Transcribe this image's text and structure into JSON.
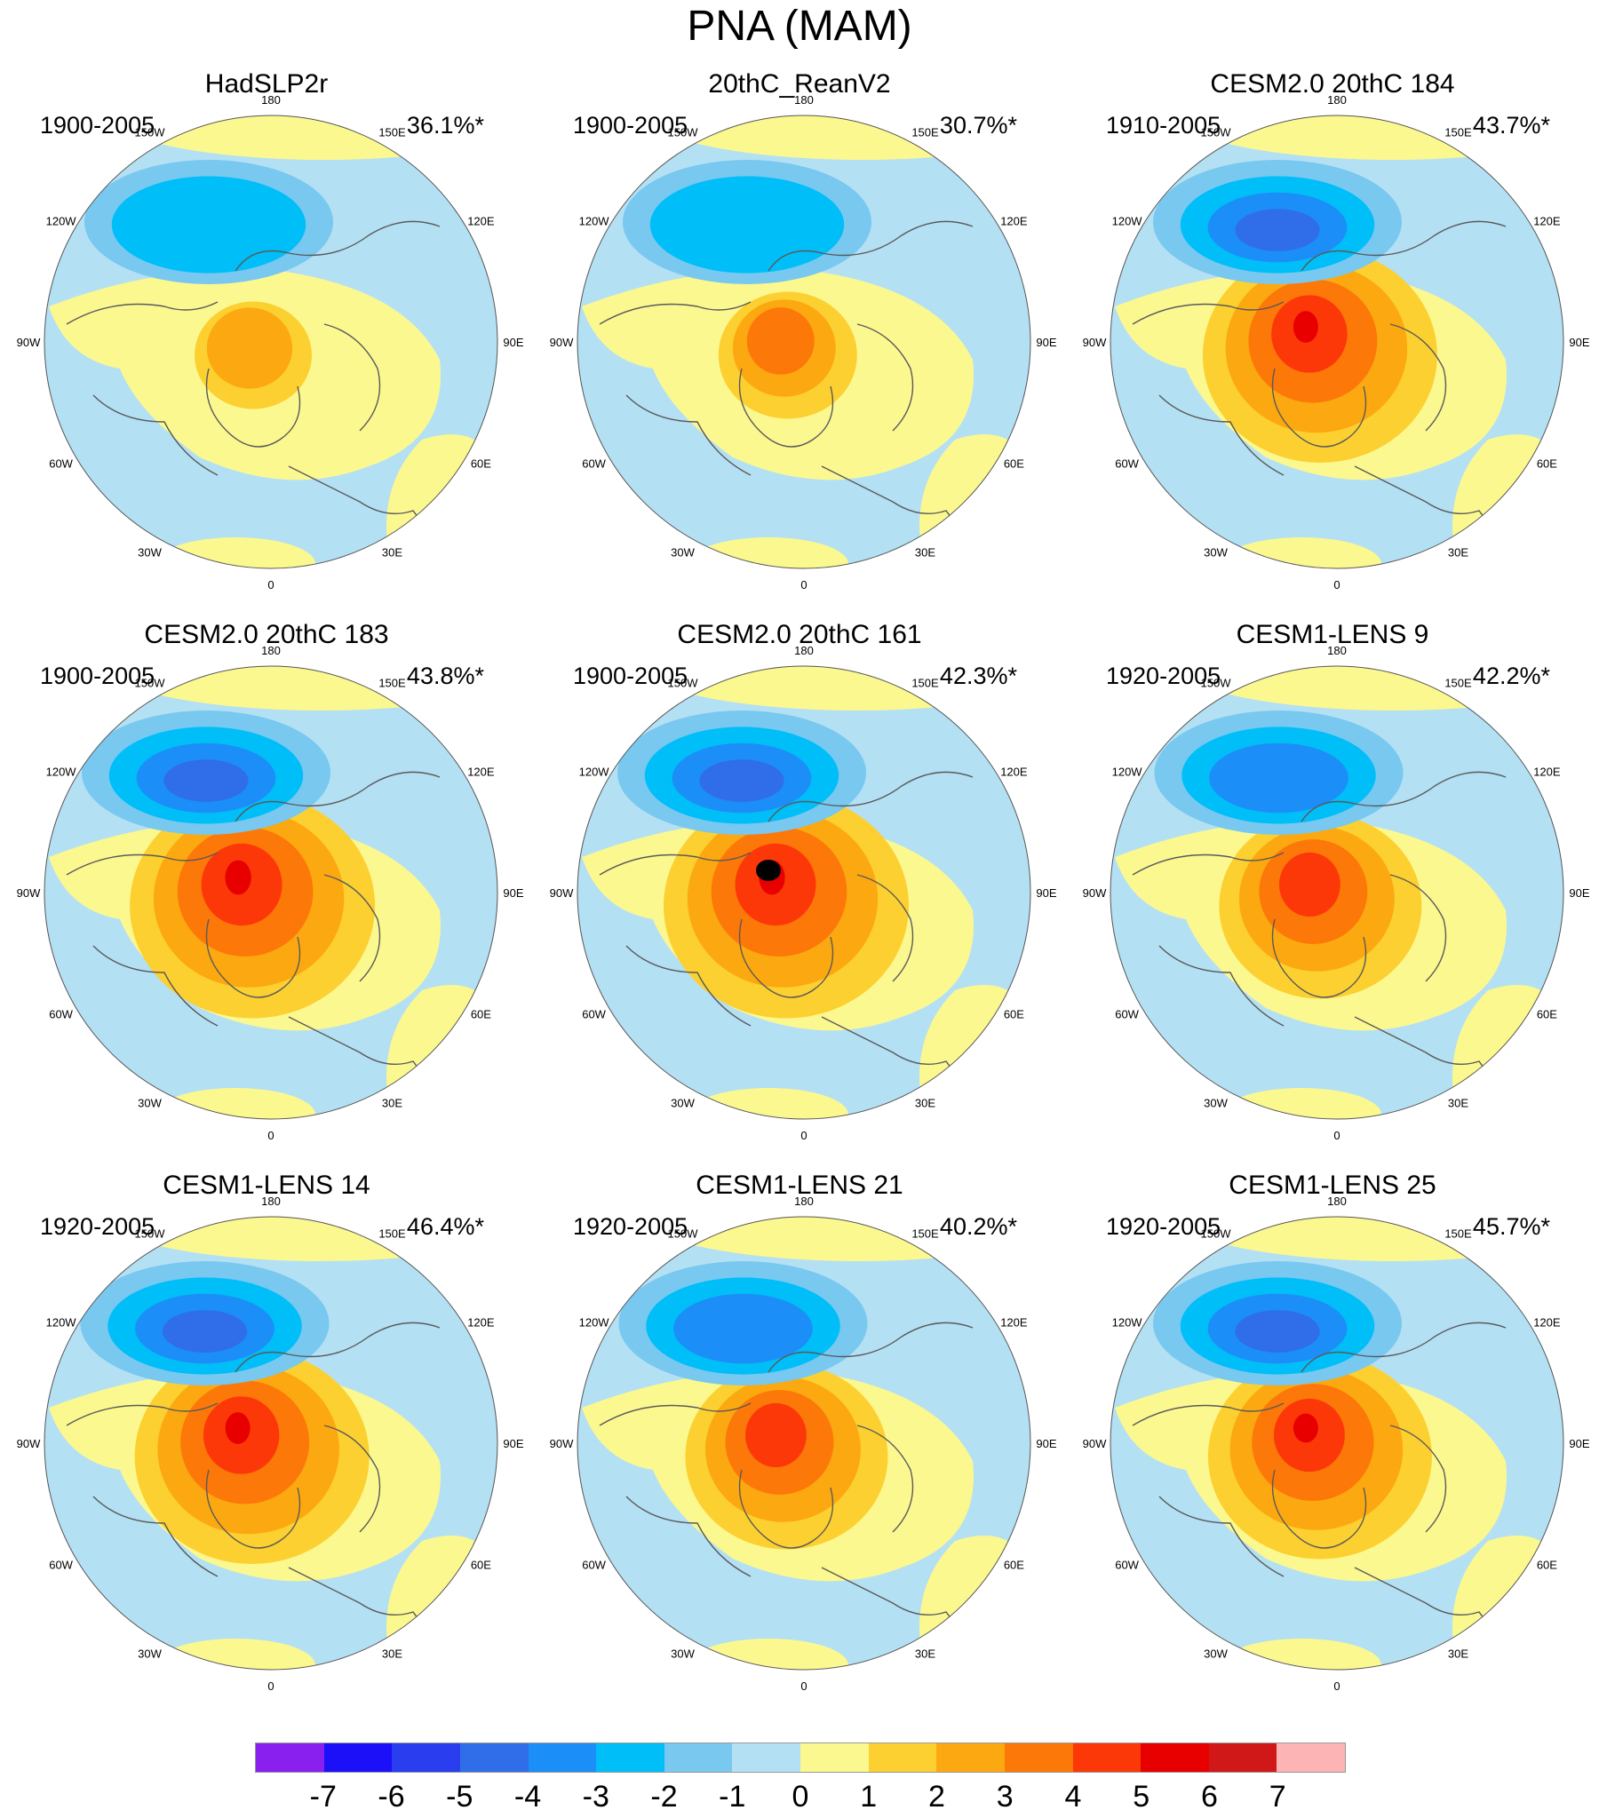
{
  "title": "PNA (MAM)",
  "panels": [
    {
      "id": "p1",
      "name": "HadSLP2r",
      "period": "1900-2005",
      "variance": "36.1%*",
      "strength": 0.45,
      "shift": 0.0
    },
    {
      "id": "p2",
      "name": "20thC_ReanV2",
      "period": "1900-2005",
      "variance": "30.7%*",
      "strength": 0.55,
      "shift": 0.2
    },
    {
      "id": "p3",
      "name": "CESM2.0 20thC 184",
      "period": "1910-2005",
      "variance": "43.7%*",
      "strength": 1.0,
      "shift": 0.1
    },
    {
      "id": "p4",
      "name": "CESM2.0 20thC 183",
      "period": "1900-2005",
      "variance": "43.8%*",
      "strength": 1.05,
      "shift": -0.1
    },
    {
      "id": "p5",
      "name": "CESM2.0 20thC 161",
      "period": "1900-2005",
      "variance": "42.3%*",
      "strength": 1.1,
      "shift": 0.0
    },
    {
      "id": "p6",
      "name": "CESM1-LENS 9",
      "period": "1920-2005",
      "variance": "42.2%*",
      "strength": 0.85,
      "shift": 0.15
    },
    {
      "id": "p7",
      "name": "CESM1-LENS 14",
      "period": "1920-2005",
      "variance": "46.4%*",
      "strength": 1.0,
      "shift": -0.15
    },
    {
      "id": "p8",
      "name": "CESM1-LENS 21",
      "period": "1920-2005",
      "variance": "40.2%*",
      "strength": 0.85,
      "shift": 0.05
    },
    {
      "id": "p9",
      "name": "CESM1-LENS 25",
      "period": "1920-2005",
      "variance": "45.7%*",
      "strength": 0.95,
      "shift": 0.1
    }
  ],
  "lon_labels": [
    "180",
    "150E",
    "120E",
    "90E",
    "60E",
    "30E",
    "0",
    "30W",
    "60W",
    "90W",
    "120W",
    "150W"
  ],
  "colorbar": {
    "labels": [
      "-7",
      "-6",
      "-5",
      "-4",
      "-3",
      "-2",
      "-1",
      "0",
      "1",
      "2",
      "3",
      "4",
      "5",
      "6",
      "7"
    ],
    "colors": [
      "#8a20f0",
      "#1c10f8",
      "#2a3ef0",
      "#2f6ee8",
      "#1c8ef8",
      "#00bef8",
      "#78c8f0",
      "#b4e0f4",
      "#fcf890",
      "#fcd030",
      "#fca810",
      "#fc7808",
      "#fc3808",
      "#e80000",
      "#d01818",
      "#fcb4b4"
    ]
  },
  "colors": {
    "neg1": "#b4e0f4",
    "neg2": "#78c8f0",
    "neg3": "#00bef8",
    "neg4": "#1c8ef8",
    "neg5": "#2f6ee8",
    "pos1": "#fcf890",
    "pos2": "#fcd030",
    "pos3": "#fca810",
    "pos4": "#fc7808",
    "pos5": "#fc3808",
    "pos6": "#e80000",
    "coast": "#5a5a5a"
  }
}
